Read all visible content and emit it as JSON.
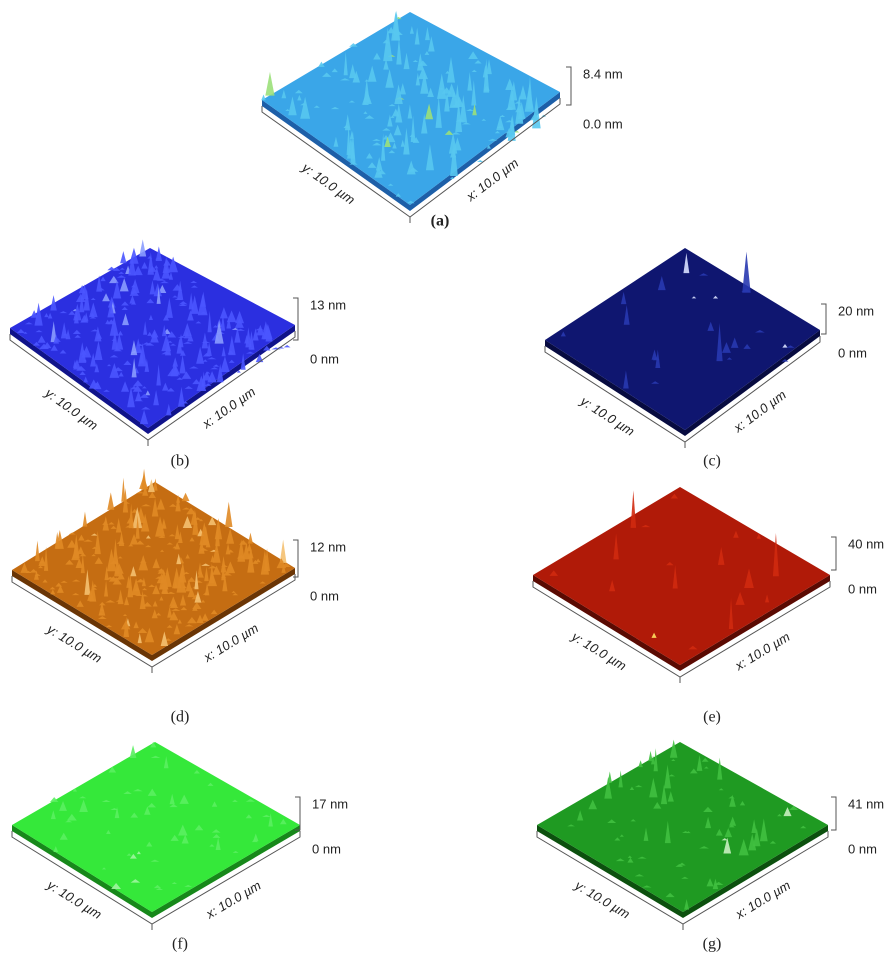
{
  "panels": [
    {
      "label": "(a)",
      "z_max": "8.4 nm",
      "z_min": "0.0 nm",
      "y_axis": "y: 10.0 µm",
      "x_axis": "x: 10.0 µm"
    },
    {
      "label": "(b)",
      "z_max": "13 nm",
      "z_min": "0 nm",
      "y_axis": "y: 10.0 µm",
      "x_axis": "x: 10.0 µm"
    },
    {
      "label": "(c)",
      "z_max": "20 nm",
      "z_min": "0 nm",
      "y_axis": "y: 10.0 µm",
      "x_axis": "x: 10.0 µm"
    },
    {
      "label": "(d)",
      "z_max": "12 nm",
      "z_min": "0 nm",
      "y_axis": "y: 10.0 µm",
      "x_axis": "x: 10.0 µm"
    },
    {
      "label": "(e)",
      "z_max": "40 nm",
      "z_min": "0 nm",
      "y_axis": "y: 10.0 µm",
      "x_axis": "x: 10.0 µm"
    },
    {
      "label": "(f)",
      "z_max": "17 nm",
      "z_min": "0 nm",
      "y_axis": "y: 10.0 µm",
      "x_axis": "x: 10.0 µm"
    },
    {
      "label": "(g)",
      "z_max": "41 nm",
      "z_min": "0 nm",
      "y_axis": "y: 10.0 µm",
      "x_axis": "x: 10.0 µm"
    }
  ]
}
